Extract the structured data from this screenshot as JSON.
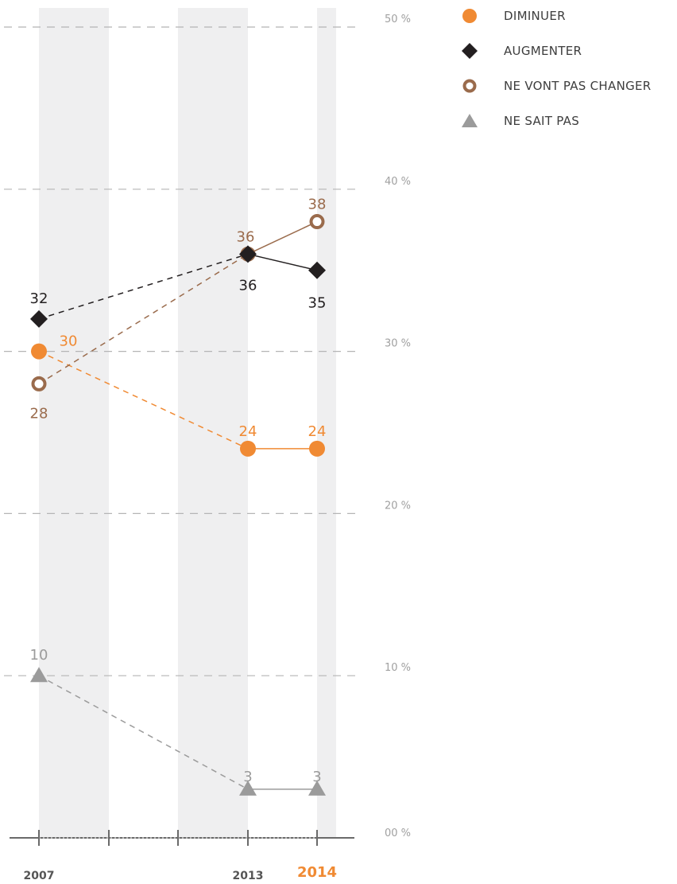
{
  "chart_data": {
    "type": "line",
    "x_axis": {
      "ticks": [
        "2007",
        "2013",
        "2014"
      ],
      "highlight": "2014"
    },
    "y_axis": {
      "tick_labels": [
        "00 %",
        "10 %",
        "20 %",
        "30 %",
        "40 %",
        "50 %"
      ],
      "ticks": [
        0,
        10,
        20,
        30,
        40,
        50
      ],
      "ylim": [
        0,
        50
      ]
    },
    "grid": true,
    "legend_position": "top-right",
    "series": [
      {
        "name": "DIMINUER",
        "marker": "circle",
        "color": "#f08a33",
        "x": [
          "2007",
          "2013",
          "2014"
        ],
        "values": [
          30,
          24,
          24
        ],
        "labels": [
          "30",
          "24",
          "24"
        ]
      },
      {
        "name": "AUGMENTER",
        "marker": "diamond",
        "color": "#231f20",
        "x": [
          "2007",
          "2013",
          "2014"
        ],
        "values": [
          32,
          36,
          35
        ],
        "labels": [
          "32",
          "36",
          "35"
        ]
      },
      {
        "name": "NE VONT PAS CHANGER",
        "marker": "ring",
        "color": "#9a6b4c",
        "x": [
          "2007",
          "2013",
          "2014"
        ],
        "values": [
          28,
          36,
          38
        ],
        "labels": [
          "28",
          "36",
          "38"
        ]
      },
      {
        "name": "NE SAIT PAS",
        "marker": "triangle",
        "color": "#9b9b9b",
        "x": [
          "2007",
          "2013",
          "2014"
        ],
        "values": [
          10,
          3,
          3
        ],
        "labels": [
          "10",
          "3",
          "3"
        ]
      }
    ]
  }
}
